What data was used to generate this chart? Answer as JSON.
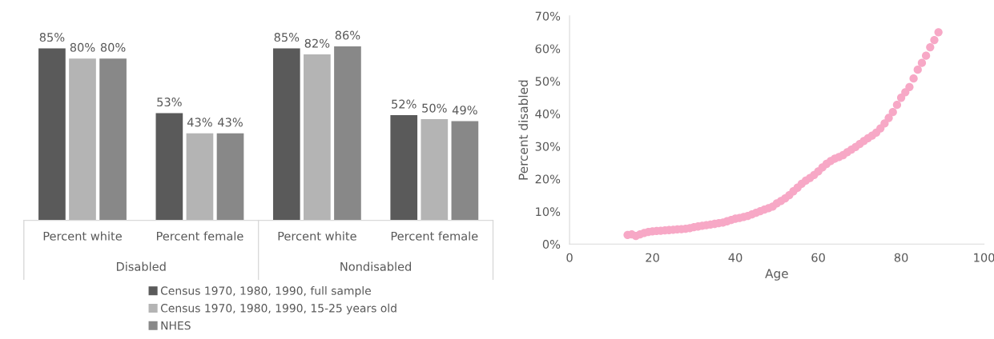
{
  "chart_data": [
    {
      "type": "bar",
      "categories": [
        "Percent white",
        "Percent female",
        "Percent white",
        "Percent female"
      ],
      "annotations": [
        "Disabled",
        "Nondisabled"
      ],
      "series": [
        {
          "name": "Census 1970, 1980, 1990, full sample",
          "color": "#5a5a5a",
          "values": [
            85,
            53,
            85,
            52
          ],
          "value_labels": [
            "85%",
            "53%",
            "85%",
            "52%"
          ]
        },
        {
          "name": "Census 1970, 1980, 1990, 15-25 years old",
          "color": "#b4b4b4",
          "values": [
            80,
            43,
            82,
            50
          ],
          "value_labels": [
            "80%",
            "43%",
            "82%",
            "50%"
          ]
        },
        {
          "name": "NHES",
          "color": "#888888",
          "values": [
            80,
            43,
            86,
            49
          ],
          "value_labels": [
            "80%",
            "43%",
            "86%",
            "49%"
          ]
        }
      ],
      "legend": "bottom",
      "grid": false
    },
    {
      "type": "scatter",
      "xlabel": "Age",
      "ylabel": "Percent disabled",
      "x": [
        14,
        15,
        16,
        17,
        18,
        19,
        20,
        21,
        22,
        23,
        24,
        25,
        26,
        27,
        28,
        29,
        30,
        31,
        32,
        33,
        34,
        35,
        36,
        37,
        38,
        39,
        40,
        41,
        42,
        43,
        44,
        45,
        46,
        47,
        48,
        49,
        50,
        51,
        52,
        53,
        54,
        55,
        56,
        57,
        58,
        59,
        60,
        61,
        62,
        63,
        64,
        65,
        66,
        67,
        68,
        69,
        70,
        71,
        72,
        73,
        74,
        75,
        76,
        77,
        78,
        79,
        80,
        81,
        82,
        83,
        84,
        85,
        86,
        87,
        88,
        89
      ],
      "series": [
        {
          "color": "#f7a8c6",
          "values": [
            2.8,
            3.0,
            2.5,
            3.0,
            3.4,
            3.7,
            3.9,
            4.0,
            4.1,
            4.2,
            4.3,
            4.4,
            4.5,
            4.6,
            4.7,
            4.9,
            5.2,
            5.4,
            5.6,
            5.8,
            6.0,
            6.2,
            6.4,
            6.6,
            7.0,
            7.4,
            7.8,
            8.0,
            8.3,
            8.6,
            9.1,
            9.6,
            10.1,
            10.6,
            11.0,
            11.5,
            12.5,
            13.2,
            14.0,
            15.0,
            16.2,
            17.3,
            18.5,
            19.5,
            20.3,
            21.2,
            22.3,
            23.5,
            24.6,
            25.5,
            26.2,
            26.7,
            27.3,
            28.2,
            29.0,
            29.8,
            30.7,
            31.6,
            32.5,
            33.3,
            34.2,
            35.5,
            37.0,
            38.7,
            40.5,
            42.7,
            44.9,
            46.6,
            48.2,
            50.8,
            53.5,
            55.6,
            57.8,
            60.4,
            62.6,
            65.0
          ]
        }
      ],
      "xlim": [
        0,
        100
      ],
      "xticks": [
        0,
        20,
        40,
        60,
        80,
        100
      ],
      "ylim": [
        0,
        70
      ],
      "yticks": [
        {
          "value": 0,
          "label": "0%"
        },
        {
          "value": 10,
          "label": "10%"
        },
        {
          "value": 20,
          "label": "20%"
        },
        {
          "value": 30,
          "label": "30%"
        },
        {
          "value": 40,
          "label": "40%"
        },
        {
          "value": 50,
          "label": "50%"
        },
        {
          "value": 60,
          "label": "60%"
        },
        {
          "value": 70,
          "label": "70%"
        }
      ],
      "marker": "circle",
      "grid": false,
      "legend": false
    }
  ]
}
